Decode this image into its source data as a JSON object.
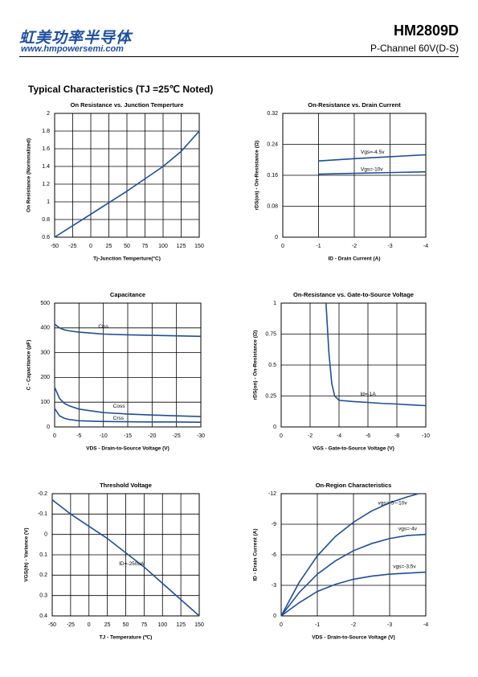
{
  "header": {
    "brand": "虹美功率半导体",
    "website": "www.hmpowersemi.com",
    "part_number": "HM2809D",
    "description": "P-Channel 60V(D-S)"
  },
  "section_title": "Typical Characteristics (TJ =25℃ Noted)",
  "chart_data": [
    {
      "type": "line",
      "title": "On Resistance vs. Junction Temperture",
      "xlabel": "Tj-Junction Temperture(°C)",
      "ylabel": "On Resistance (Normmalized)",
      "xlim": [
        -50,
        150
      ],
      "xticks": [
        -50,
        -25,
        0,
        25,
        50,
        75,
        100,
        125,
        150
      ],
      "ylim": [
        0.6,
        2
      ],
      "yticks": [
        0.6,
        0.8,
        1,
        1.2,
        1.4,
        1.6,
        1.8,
        2
      ],
      "grid": true,
      "series": [
        {
          "color": "#1f4e9a",
          "x": [
            -50,
            -25,
            0,
            25,
            50,
            75,
            100,
            125,
            150
          ],
          "values": [
            0.6,
            0.73,
            0.86,
            0.99,
            1.12,
            1.26,
            1.4,
            1.57,
            1.8
          ]
        }
      ]
    },
    {
      "type": "line",
      "title": "On-Resistance vs. Drain Current",
      "xlabel": "ID - Drain Current (A)",
      "ylabel": "rDS(on) - On-Resistance (Ω)",
      "xlim": [
        0,
        -4
      ],
      "xticks": [
        0,
        -1,
        -2,
        -3,
        -4
      ],
      "ylim": [
        0,
        0.32
      ],
      "yticks": [
        0,
        0.08,
        0.16,
        0.24,
        0.32
      ],
      "grid": true,
      "series": [
        {
          "name": "Vgs=-4.5v",
          "color": "#1f4e9a",
          "x": [
            -1,
            -2,
            -3,
            -4
          ],
          "values": [
            0.197,
            0.203,
            0.208,
            0.213
          ]
        },
        {
          "name": "Vgs=-10v",
          "color": "#1f4e9a",
          "x": [
            -1,
            -2,
            -3,
            -4
          ],
          "values": [
            0.163,
            0.165,
            0.167,
            0.169
          ]
        }
      ]
    },
    {
      "type": "line",
      "title": "Capacitance",
      "xlabel": "VDS - Drain-to-Source Voltage (V)",
      "ylabel": "C - Capacitance (pF)",
      "xlim": [
        0,
        -30
      ],
      "xticks": [
        0,
        -5,
        -10,
        -15,
        -20,
        -25,
        -30
      ],
      "ylim": [
        0,
        500
      ],
      "yticks": [
        0,
        100,
        200,
        300,
        400,
        500
      ],
      "grid": true,
      "series": [
        {
          "name": "Ciss",
          "color": "#1f4e9a",
          "x": [
            0,
            -1,
            -2,
            -3,
            -5,
            -10,
            -15,
            -20,
            -25,
            -30
          ],
          "values": [
            415,
            400,
            392,
            388,
            383,
            375,
            372,
            370,
            368,
            366
          ]
        },
        {
          "name": "Coss",
          "color": "#1f4e9a",
          "x": [
            0,
            -1,
            -2,
            -3,
            -5,
            -10,
            -15,
            -20,
            -25,
            -30
          ],
          "values": [
            160,
            115,
            95,
            85,
            72,
            58,
            52,
            48,
            45,
            42
          ]
        },
        {
          "name": "Crss",
          "color": "#1f4e9a",
          "x": [
            0,
            -1,
            -2,
            -3,
            -5,
            -10,
            -15,
            -20,
            -25,
            -30
          ],
          "values": [
            75,
            45,
            35,
            30,
            25,
            22,
            21,
            20,
            20,
            19
          ]
        }
      ]
    },
    {
      "type": "line",
      "title": "On-Resistance vs. Gate-to-Source Voltage",
      "xlabel": "VGS - Gate-to-Source Voltage (V)",
      "ylabel": "rDS(on) - On-Resistance (Ω)",
      "xlim": [
        0,
        -10
      ],
      "xticks": [
        0,
        -2,
        -4,
        -6,
        -8,
        -10
      ],
      "ylim": [
        0,
        1
      ],
      "yticks": [
        0,
        0.25,
        0.5,
        0.75,
        1
      ],
      "grid": true,
      "series": [
        {
          "name": "Id=-1A",
          "color": "#1f4e9a",
          "x": [
            -3.1,
            -3.3,
            -3.5,
            -3.7,
            -4,
            -5,
            -6,
            -7,
            -8,
            -9,
            -10
          ],
          "values": [
            1,
            0.6,
            0.35,
            0.25,
            0.215,
            0.205,
            0.198,
            0.19,
            0.185,
            0.178,
            0.172
          ]
        }
      ]
    },
    {
      "type": "line",
      "title": "Threshold Voltage",
      "xlabel": "TJ - Temperature (℃)",
      "ylabel": "VGS(th) - Variance (V)",
      "xlim": [
        -50,
        150
      ],
      "xticks": [
        -50,
        -25,
        0,
        25,
        50,
        75,
        100,
        125,
        150
      ],
      "ylim": [
        0.4,
        -0.2
      ],
      "yticks": [
        -0.2,
        -0.1,
        0,
        0.1,
        0.2,
        0.3,
        0.4
      ],
      "grid": true,
      "series": [
        {
          "name": "ID=-250uA",
          "color": "#1f4e9a",
          "x": [
            -50,
            -25,
            0,
            25,
            50,
            75,
            100,
            125,
            150
          ],
          "values": [
            -0.17,
            -0.1,
            -0.04,
            0.02,
            0.09,
            0.16,
            0.24,
            0.32,
            0.4
          ]
        }
      ]
    },
    {
      "type": "line",
      "title": "On-Region Characteristics",
      "xlabel": "VDS - Drain-to-Source Voltage (V)",
      "ylabel": "ID - Drain Current (A)",
      "xlim": [
        0,
        -4
      ],
      "xticks": [
        0,
        -1,
        -2,
        -3,
        -4
      ],
      "ylim": [
        0,
        -12
      ],
      "yticks": [
        0,
        -3,
        -6,
        -9,
        -12
      ],
      "grid": true,
      "series": [
        {
          "name": "vgs=-5~-10v",
          "color": "#1f4e9a",
          "x": [
            0,
            -0.5,
            -1,
            -1.5,
            -2,
            -2.5,
            -3,
            -3.5,
            -3.8
          ],
          "values": [
            0,
            -3.3,
            -5.9,
            -7.8,
            -9.2,
            -10.3,
            -11.1,
            -11.7,
            -12
          ]
        },
        {
          "name": "vgs=-4v",
          "color": "#1f4e9a",
          "x": [
            0,
            -0.5,
            -1,
            -1.5,
            -2,
            -2.5,
            -3,
            -3.5,
            -4
          ],
          "values": [
            0,
            -2.3,
            -4.1,
            -5.4,
            -6.4,
            -7.1,
            -7.6,
            -7.9,
            -8
          ]
        },
        {
          "name": "vgs=-3.5v",
          "color": "#1f4e9a",
          "x": [
            0,
            -0.5,
            -1,
            -1.5,
            -2,
            -2.5,
            -3,
            -3.5,
            -4
          ],
          "values": [
            0,
            -1.3,
            -2.4,
            -3.1,
            -3.6,
            -3.9,
            -4.1,
            -4.2,
            -4.3
          ]
        }
      ]
    }
  ]
}
